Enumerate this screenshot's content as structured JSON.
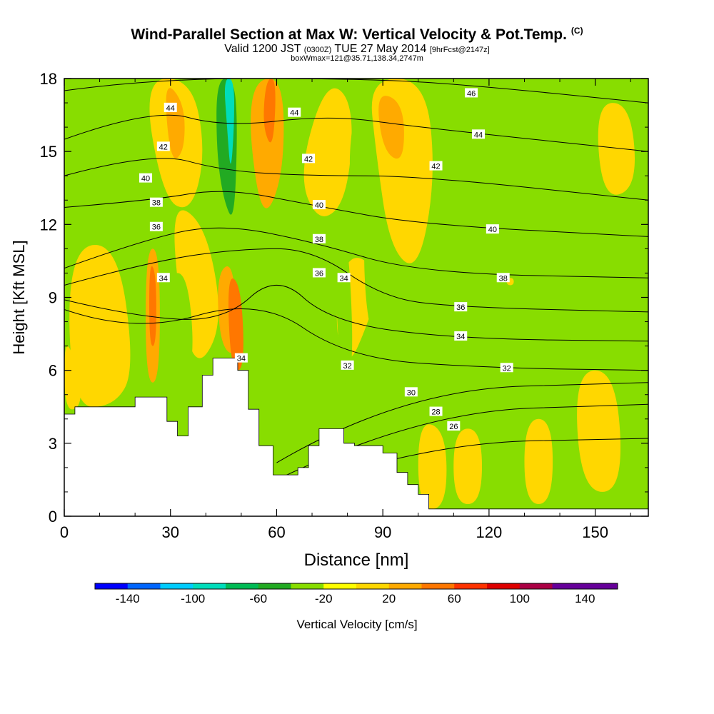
{
  "header": {
    "title": "Wind-Parallel Section at Max W: Vertical Velocity & Pot.Temp.",
    "copyright": "(C)",
    "valid_prefix": "Valid 1200 JST",
    "valid_utc": "(0300Z)",
    "valid_date": "TUE 27 May 2014",
    "forecast": "[9hrFcst@2147z]",
    "box_info": "boxWmax=121@35.71,138.34,2747m"
  },
  "chart_data": {
    "type": "heatmap",
    "xlabel": "Distance [nm]",
    "ylabel": "Height [Kft MSL]",
    "xlim": [
      0,
      165
    ],
    "ylim": [
      0,
      18
    ],
    "x_ticks": [
      0,
      30,
      60,
      90,
      120,
      150
    ],
    "y_ticks": [
      0,
      3,
      6,
      9,
      12,
      15,
      18
    ],
    "colorbar": {
      "label": "Vertical Velocity [cm/s]",
      "bounds": [
        -160,
        -140,
        -120,
        -100,
        -80,
        -60,
        -40,
        -20,
        0,
        20,
        40,
        60,
        80,
        100,
        120,
        140,
        160
      ],
      "tick_labels": [
        -140,
        -100,
        -60,
        -20,
        20,
        60,
        100,
        140
      ],
      "colors": [
        "#0000ff",
        "#0066ff",
        "#00ccff",
        "#00ddbb",
        "#00bb55",
        "#22aa22",
        "#88dd00",
        "#ffff00",
        "#ffd700",
        "#ffaa00",
        "#ff7700",
        "#ff3300",
        "#dd0000",
        "#aa0044",
        "#660099",
        "#660099"
      ]
    },
    "background_color": "#88dd00",
    "terrain_profile": [
      [
        0,
        4.2
      ],
      [
        3,
        4.2
      ],
      [
        3,
        4.5
      ],
      [
        20,
        4.5
      ],
      [
        20,
        4.9
      ],
      [
        29,
        4.9
      ],
      [
        29,
        3.9
      ],
      [
        32,
        3.9
      ],
      [
        32,
        3.3
      ],
      [
        35,
        3.3
      ],
      [
        35,
        4.5
      ],
      [
        39,
        4.5
      ],
      [
        39,
        5.8
      ],
      [
        42,
        5.8
      ],
      [
        42,
        6.5
      ],
      [
        49,
        6.5
      ],
      [
        49,
        6
      ],
      [
        52,
        6
      ],
      [
        52,
        4.4
      ],
      [
        55,
        4.4
      ],
      [
        55,
        2.9
      ],
      [
        59,
        2.9
      ],
      [
        59,
        1.7
      ],
      [
        66,
        1.7
      ],
      [
        66,
        2
      ],
      [
        69,
        2
      ],
      [
        69,
        2.9
      ],
      [
        72,
        2.9
      ],
      [
        72,
        3.6
      ],
      [
        79,
        3.6
      ],
      [
        79,
        3
      ],
      [
        82,
        3
      ],
      [
        82,
        2.9
      ],
      [
        90,
        2.9
      ],
      [
        90,
        2.6
      ],
      [
        94,
        2.6
      ],
      [
        94,
        1.8
      ],
      [
        97,
        1.8
      ],
      [
        97,
        1.3
      ],
      [
        100,
        1.3
      ],
      [
        100,
        0.9
      ],
      [
        103,
        0.9
      ],
      [
        103,
        0.3
      ],
      [
        165,
        0.3
      ]
    ],
    "velocity_zones": [
      {
        "w": 10,
        "points": [
          [
            0,
            7.5
          ],
          [
            4,
            6
          ],
          [
            5,
            4.5
          ],
          [
            0,
            4.3
          ]
        ]
      },
      {
        "w": 10,
        "points": [
          [
            1,
            11
          ],
          [
            15,
            11.3
          ],
          [
            20,
            6
          ],
          [
            14,
            4.5
          ],
          [
            2,
            4.5
          ]
        ]
      },
      {
        "w": 10,
        "points": [
          [
            30,
            13
          ],
          [
            40,
            12
          ],
          [
            45,
            8
          ],
          [
            38,
            6
          ],
          [
            33,
            8
          ]
        ]
      },
      {
        "w": 10,
        "points": [
          [
            22,
            18
          ],
          [
            36,
            18
          ],
          [
            40,
            15
          ],
          [
            36,
            12.5
          ],
          [
            28,
            13
          ]
        ]
      },
      {
        "w": 10,
        "points": [
          [
            74,
            18
          ],
          [
            82,
            17
          ],
          [
            80,
            13
          ],
          [
            72,
            12
          ],
          [
            66,
            14
          ]
        ]
      },
      {
        "w": 10,
        "points": [
          [
            80,
            11
          ],
          [
            90,
            10
          ],
          [
            86,
            8
          ],
          [
            80,
            6
          ],
          [
            76,
            8
          ]
        ]
      },
      {
        "w": 10,
        "points": [
          [
            86,
            18
          ],
          [
            102,
            18
          ],
          [
            105,
            14
          ],
          [
            100,
            10
          ],
          [
            92,
            11
          ],
          [
            88,
            15
          ]
        ]
      },
      {
        "w": 10,
        "points": [
          [
            100,
            4
          ],
          [
            108,
            3.5
          ],
          [
            108,
            0.3
          ],
          [
            100,
            0.3
          ]
        ]
      },
      {
        "w": 10,
        "points": [
          [
            110,
            3.6
          ],
          [
            118,
            3.6
          ],
          [
            118,
            0.5
          ],
          [
            110,
            0.5
          ]
        ]
      },
      {
        "w": 10,
        "points": [
          [
            130,
            4
          ],
          [
            138,
            4
          ],
          [
            138,
            0.5
          ],
          [
            130,
            0.5
          ]
        ]
      },
      {
        "w": 10,
        "points": [
          [
            144,
            6
          ],
          [
            156,
            6
          ],
          [
            158,
            1
          ],
          [
            146,
            1
          ]
        ]
      },
      {
        "w": 10,
        "points": [
          [
            150,
            17
          ],
          [
            160,
            17
          ],
          [
            162,
            13.5
          ],
          [
            152,
            13
          ]
        ]
      },
      {
        "w": 10,
        "points": [
          [
            125,
            9.8
          ],
          [
            127,
            9.8
          ],
          [
            127,
            9.5
          ],
          [
            125,
            9.5
          ]
        ]
      },
      {
        "w": -30,
        "points": [
          [
            29,
            10
          ],
          [
            35,
            10
          ],
          [
            37,
            6
          ],
          [
            30,
            5
          ]
        ]
      },
      {
        "w": -30,
        "points": [
          [
            52,
            9
          ],
          [
            56,
            7
          ],
          [
            56,
            4
          ],
          [
            52,
            4.4
          ]
        ]
      },
      {
        "w": -30,
        "points": [
          [
            76,
            12
          ],
          [
            80,
            12
          ],
          [
            82,
            6
          ],
          [
            78,
            5
          ]
        ]
      },
      {
        "w": -30,
        "points": [
          [
            84,
            12
          ],
          [
            90,
            11
          ],
          [
            94,
            7
          ],
          [
            86,
            7
          ]
        ]
      },
      {
        "w": -30,
        "points": [
          [
            82,
            17
          ],
          [
            86,
            16
          ],
          [
            84,
            13
          ],
          [
            80,
            14
          ]
        ]
      },
      {
        "w": -30,
        "points": [
          [
            2,
            17.5
          ],
          [
            6,
            16
          ],
          [
            4,
            13
          ],
          [
            0,
            14
          ]
        ]
      },
      {
        "w": -30,
        "points": [
          [
            24,
            14
          ],
          [
            28,
            12
          ],
          [
            27,
            10
          ],
          [
            23,
            11
          ]
        ]
      },
      {
        "w": 30,
        "points": [
          [
            23,
            11
          ],
          [
            27,
            11
          ],
          [
            27,
            5.5
          ],
          [
            23,
            5.5
          ]
        ]
      },
      {
        "w": 30,
        "points": [
          [
            43,
            10
          ],
          [
            48,
            10.5
          ],
          [
            49,
            6.5
          ],
          [
            44,
            7
          ]
        ]
      },
      {
        "w": 30,
        "points": [
          [
            54,
            18
          ],
          [
            62,
            18
          ],
          [
            62,
            14
          ],
          [
            56,
            12
          ],
          [
            52,
            16
          ]
        ]
      },
      {
        "w": 30,
        "points": [
          [
            28,
            18
          ],
          [
            34,
            17
          ],
          [
            34,
            15
          ],
          [
            30,
            14.5
          ]
        ]
      },
      {
        "w": 30,
        "points": [
          [
            88,
            17.5
          ],
          [
            96,
            17
          ],
          [
            96,
            14.5
          ],
          [
            90,
            15
          ]
        ]
      },
      {
        "w": 50,
        "points": [
          [
            46,
            10
          ],
          [
            50,
            9.5
          ],
          [
            51,
            6
          ],
          [
            47,
            6
          ]
        ]
      },
      {
        "w": 50,
        "points": [
          [
            57,
            18
          ],
          [
            60,
            18
          ],
          [
            59,
            15
          ],
          [
            56,
            16
          ]
        ]
      },
      {
        "w": 50,
        "points": [
          [
            24,
            10.5
          ],
          [
            26,
            10
          ],
          [
            26,
            7
          ],
          [
            24,
            7
          ]
        ]
      },
      {
        "w": -50,
        "points": [
          [
            43,
            18
          ],
          [
            48,
            18
          ],
          [
            49,
            16
          ],
          [
            48,
            12
          ],
          [
            45,
            13
          ],
          [
            43,
            15
          ]
        ]
      },
      {
        "w": -90,
        "points": [
          [
            45,
            18
          ],
          [
            48,
            18
          ],
          [
            48,
            16
          ],
          [
            47,
            14
          ],
          [
            46,
            16
          ]
        ]
      }
    ],
    "isentropes": [
      {
        "theta": 26,
        "points": [
          [
            60,
            0.9
          ],
          [
            100,
            3.0
          ],
          [
            165,
            3.2
          ]
        ]
      },
      {
        "theta": 28,
        "points": [
          [
            60,
            1.5
          ],
          [
            100,
            4.3
          ],
          [
            165,
            4.6
          ]
        ]
      },
      {
        "theta": 30,
        "points": [
          [
            60,
            2.2
          ],
          [
            95,
            5.2
          ],
          [
            165,
            5.5
          ]
        ]
      },
      {
        "theta": 32,
        "points": [
          [
            0,
            8.5
          ],
          [
            20,
            7.5
          ],
          [
            55,
            9
          ],
          [
            80,
            6.5
          ],
          [
            120,
            6.1
          ],
          [
            165,
            6.0
          ]
        ]
      },
      {
        "theta": 34,
        "points": [
          [
            0,
            8.9
          ],
          [
            20,
            8.2
          ],
          [
            45,
            8
          ],
          [
            60,
            10
          ],
          [
            75,
            8
          ],
          [
            110,
            7.3
          ],
          [
            165,
            7.2
          ]
        ]
      },
      {
        "theta": 36,
        "points": [
          [
            0,
            9.5
          ],
          [
            25,
            10.5
          ],
          [
            50,
            11
          ],
          [
            70,
            11
          ],
          [
            90,
            9
          ],
          [
            110,
            8.6
          ],
          [
            165,
            8.4
          ]
        ]
      },
      {
        "theta": 38,
        "points": [
          [
            0,
            10.2
          ],
          [
            25,
            11.5
          ],
          [
            45,
            12
          ],
          [
            70,
            11.3
          ],
          [
            100,
            10
          ],
          [
            165,
            9.8
          ]
        ]
      },
      {
        "theta": 40,
        "points": [
          [
            0,
            12.7
          ],
          [
            25,
            13
          ],
          [
            45,
            13.5
          ],
          [
            70,
            12.8
          ],
          [
            100,
            12
          ],
          [
            165,
            11.5
          ]
        ]
      },
      {
        "theta": 42,
        "points": [
          [
            0,
            14
          ],
          [
            25,
            15
          ],
          [
            45,
            14.2
          ],
          [
            70,
            14
          ],
          [
            100,
            14
          ],
          [
            165,
            13
          ]
        ]
      },
      {
        "theta": 44,
        "points": [
          [
            0,
            15.5
          ],
          [
            25,
            16.8
          ],
          [
            45,
            16
          ],
          [
            75,
            16.5
          ],
          [
            100,
            16
          ],
          [
            165,
            15
          ]
        ]
      },
      {
        "theta": 46,
        "points": [
          [
            0,
            17.5
          ],
          [
            25,
            18
          ],
          [
            80,
            18
          ],
          [
            110,
            17.8
          ],
          [
            165,
            17
          ]
        ]
      }
    ],
    "contour_labels": [
      {
        "text": "46",
        "x": 115,
        "y": 17.4
      },
      {
        "text": "44",
        "x": 30,
        "y": 16.8
      },
      {
        "text": "44",
        "x": 65,
        "y": 16.6
      },
      {
        "text": "44",
        "x": 117,
        "y": 15.7
      },
      {
        "text": "42",
        "x": 28,
        "y": 15.2
      },
      {
        "text": "42",
        "x": 69,
        "y": 14.7
      },
      {
        "text": "42",
        "x": 105,
        "y": 14.4
      },
      {
        "text": "40",
        "x": 23,
        "y": 13.9
      },
      {
        "text": "40",
        "x": 72,
        "y": 12.8
      },
      {
        "text": "40",
        "x": 121,
        "y": 11.8
      },
      {
        "text": "38",
        "x": 26,
        "y": 12.9
      },
      {
        "text": "38",
        "x": 72,
        "y": 11.4
      },
      {
        "text": "38",
        "x": 124,
        "y": 9.8
      },
      {
        "text": "36",
        "x": 26,
        "y": 11.9
      },
      {
        "text": "36",
        "x": 72,
        "y": 10.0
      },
      {
        "text": "36",
        "x": 112,
        "y": 8.6
      },
      {
        "text": "34",
        "x": 28,
        "y": 9.8
      },
      {
        "text": "34",
        "x": 79,
        "y": 9.8
      },
      {
        "text": "34",
        "x": 112,
        "y": 7.4
      },
      {
        "text": "34",
        "x": 50,
        "y": 6.5
      },
      {
        "text": "32",
        "x": 80,
        "y": 6.2
      },
      {
        "text": "32",
        "x": 125,
        "y": 6.1
      },
      {
        "text": "30",
        "x": 98,
        "y": 5.1
      },
      {
        "text": "28",
        "x": 105,
        "y": 4.3
      },
      {
        "text": "26",
        "x": 110,
        "y": 3.7
      }
    ]
  }
}
